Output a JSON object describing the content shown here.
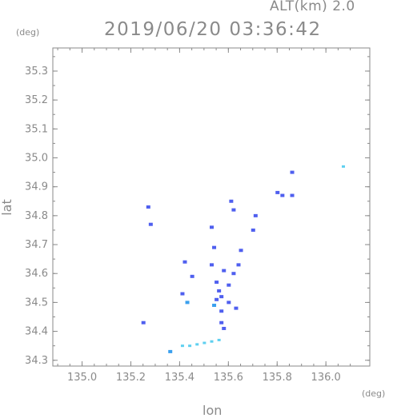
{
  "header": {
    "altitude_label": "ALT(km) 2.0",
    "timestamp": "2019/06/20 03:36:42",
    "y_unit": "(deg)",
    "x_unit": "(deg)"
  },
  "chart_data": {
    "type": "scatter",
    "xlabel": "lon",
    "ylabel": "lat",
    "xlim": [
      134.88,
      136.18
    ],
    "ylim": [
      34.28,
      35.38
    ],
    "x_ticks": [
      "135.0",
      "135.2",
      "135.4",
      "135.6",
      "135.8",
      "136.0"
    ],
    "x_tick_values": [
      135.0,
      135.2,
      135.4,
      135.6,
      135.8,
      136.0
    ],
    "y_ticks": [
      "35.3",
      "35.2",
      "35.1",
      "35.0",
      "34.9",
      "34.8",
      "34.7",
      "34.6",
      "34.5",
      "34.4",
      "34.3"
    ],
    "y_tick_values": [
      35.3,
      35.2,
      35.1,
      35.0,
      34.9,
      34.8,
      34.7,
      34.6,
      34.5,
      34.4,
      34.3
    ],
    "colors": {
      "strong": "#4f5fef",
      "mid": "#3aa0ee",
      "light": "#5fd0f0",
      "frame": "#8a8a8a"
    },
    "echoes": [
      {
        "lon": 135.27,
        "lat": 34.83,
        "level": "strong"
      },
      {
        "lon": 135.28,
        "lat": 34.77,
        "level": "strong"
      },
      {
        "lon": 135.25,
        "lat": 34.43,
        "level": "strong"
      },
      {
        "lon": 135.41,
        "lat": 34.53,
        "level": "strong"
      },
      {
        "lon": 135.42,
        "lat": 34.64,
        "level": "strong"
      },
      {
        "lon": 135.45,
        "lat": 34.59,
        "level": "strong"
      },
      {
        "lon": 135.43,
        "lat": 34.5,
        "level": "mid"
      },
      {
        "lon": 135.53,
        "lat": 34.63,
        "level": "strong"
      },
      {
        "lon": 135.54,
        "lat": 34.69,
        "level": "strong"
      },
      {
        "lon": 135.53,
        "lat": 34.76,
        "level": "strong"
      },
      {
        "lon": 135.55,
        "lat": 34.57,
        "level": "strong"
      },
      {
        "lon": 135.56,
        "lat": 34.54,
        "level": "strong"
      },
      {
        "lon": 135.55,
        "lat": 34.51,
        "level": "strong"
      },
      {
        "lon": 135.57,
        "lat": 34.52,
        "level": "strong"
      },
      {
        "lon": 135.57,
        "lat": 34.47,
        "level": "strong"
      },
      {
        "lon": 135.54,
        "lat": 34.49,
        "level": "mid"
      },
      {
        "lon": 135.58,
        "lat": 34.61,
        "level": "strong"
      },
      {
        "lon": 135.6,
        "lat": 34.56,
        "level": "strong"
      },
      {
        "lon": 135.62,
        "lat": 34.6,
        "level": "strong"
      },
      {
        "lon": 135.6,
        "lat": 34.5,
        "level": "strong"
      },
      {
        "lon": 135.63,
        "lat": 34.48,
        "level": "strong"
      },
      {
        "lon": 135.64,
        "lat": 34.63,
        "level": "strong"
      },
      {
        "lon": 135.65,
        "lat": 34.68,
        "level": "strong"
      },
      {
        "lon": 135.57,
        "lat": 34.43,
        "level": "strong"
      },
      {
        "lon": 135.58,
        "lat": 34.41,
        "level": "strong"
      },
      {
        "lon": 135.61,
        "lat": 34.85,
        "level": "strong"
      },
      {
        "lon": 135.62,
        "lat": 34.82,
        "level": "strong"
      },
      {
        "lon": 135.71,
        "lat": 34.8,
        "level": "strong"
      },
      {
        "lon": 135.7,
        "lat": 34.75,
        "level": "strong"
      },
      {
        "lon": 135.8,
        "lat": 34.88,
        "level": "strong"
      },
      {
        "lon": 135.82,
        "lat": 34.87,
        "level": "strong"
      },
      {
        "lon": 135.86,
        "lat": 34.87,
        "level": "strong"
      },
      {
        "lon": 135.86,
        "lat": 34.95,
        "level": "strong"
      },
      {
        "lon": 136.07,
        "lat": 34.97,
        "level": "light"
      },
      {
        "lon": 135.36,
        "lat": 34.33,
        "level": "mid"
      },
      {
        "lon": 135.41,
        "lat": 34.35,
        "level": "light"
      },
      {
        "lon": 135.44,
        "lat": 34.35,
        "level": "light"
      },
      {
        "lon": 135.47,
        "lat": 34.355,
        "level": "light"
      },
      {
        "lon": 135.5,
        "lat": 34.36,
        "level": "light"
      },
      {
        "lon": 135.53,
        "lat": 34.365,
        "level": "light"
      },
      {
        "lon": 135.56,
        "lat": 34.37,
        "level": "light"
      }
    ]
  }
}
